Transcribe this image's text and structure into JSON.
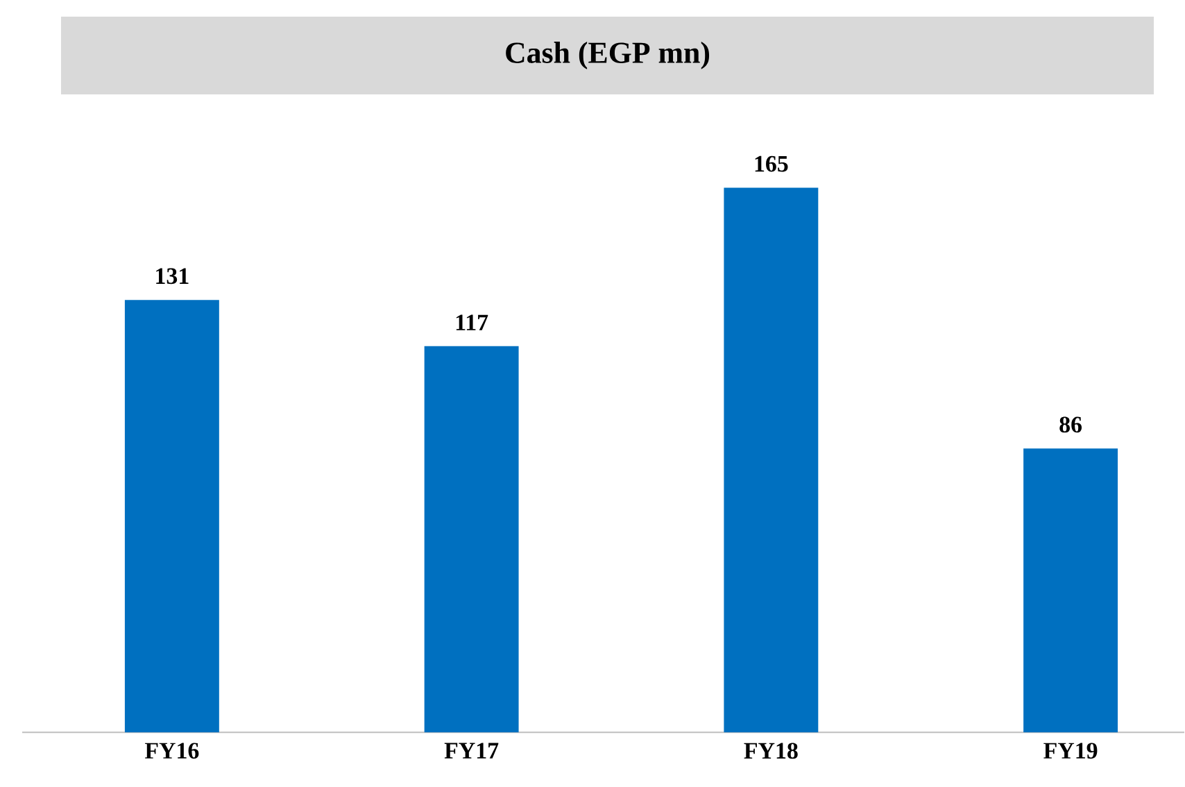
{
  "chart_data": {
    "type": "bar",
    "title": "Cash (EGP mn)",
    "categories": [
      "FY16",
      "FY17",
      "FY18",
      "FY19"
    ],
    "values": [
      131,
      117,
      165,
      86
    ],
    "color": "#0070c0",
    "data_labels": true
  }
}
